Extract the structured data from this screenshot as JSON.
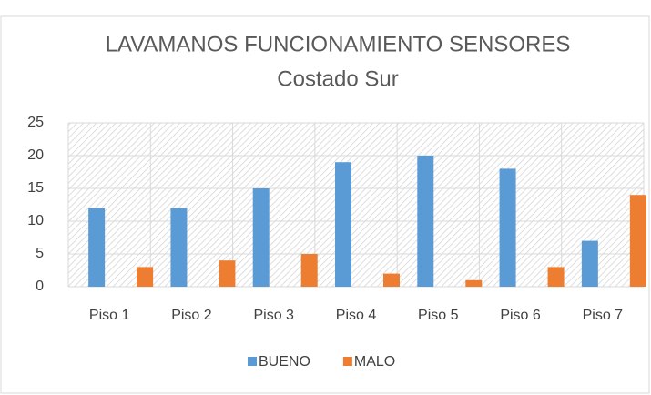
{
  "chart_data": {
    "type": "bar",
    "title": "LAVAMANOS FUNCIONAMIENTO SENSORES",
    "subtitle": "Costado Sur",
    "categories": [
      "Piso 1",
      "Piso 2",
      "Piso 3",
      "Piso 4",
      "Piso 5",
      "Piso 6",
      "Piso 7"
    ],
    "series": [
      {
        "name": "BUENO",
        "color": "#5b9bd5",
        "values": [
          12,
          12,
          15,
          19,
          20,
          18,
          7
        ]
      },
      {
        "name": "MALO",
        "color": "#ed7d31",
        "values": [
          3,
          4,
          5,
          2,
          1,
          3,
          14
        ]
      }
    ],
    "ylim": [
      0,
      25
    ],
    "yticks": [
      0,
      5,
      10,
      15,
      20,
      25
    ],
    "grid": true,
    "legend": "bottom"
  }
}
